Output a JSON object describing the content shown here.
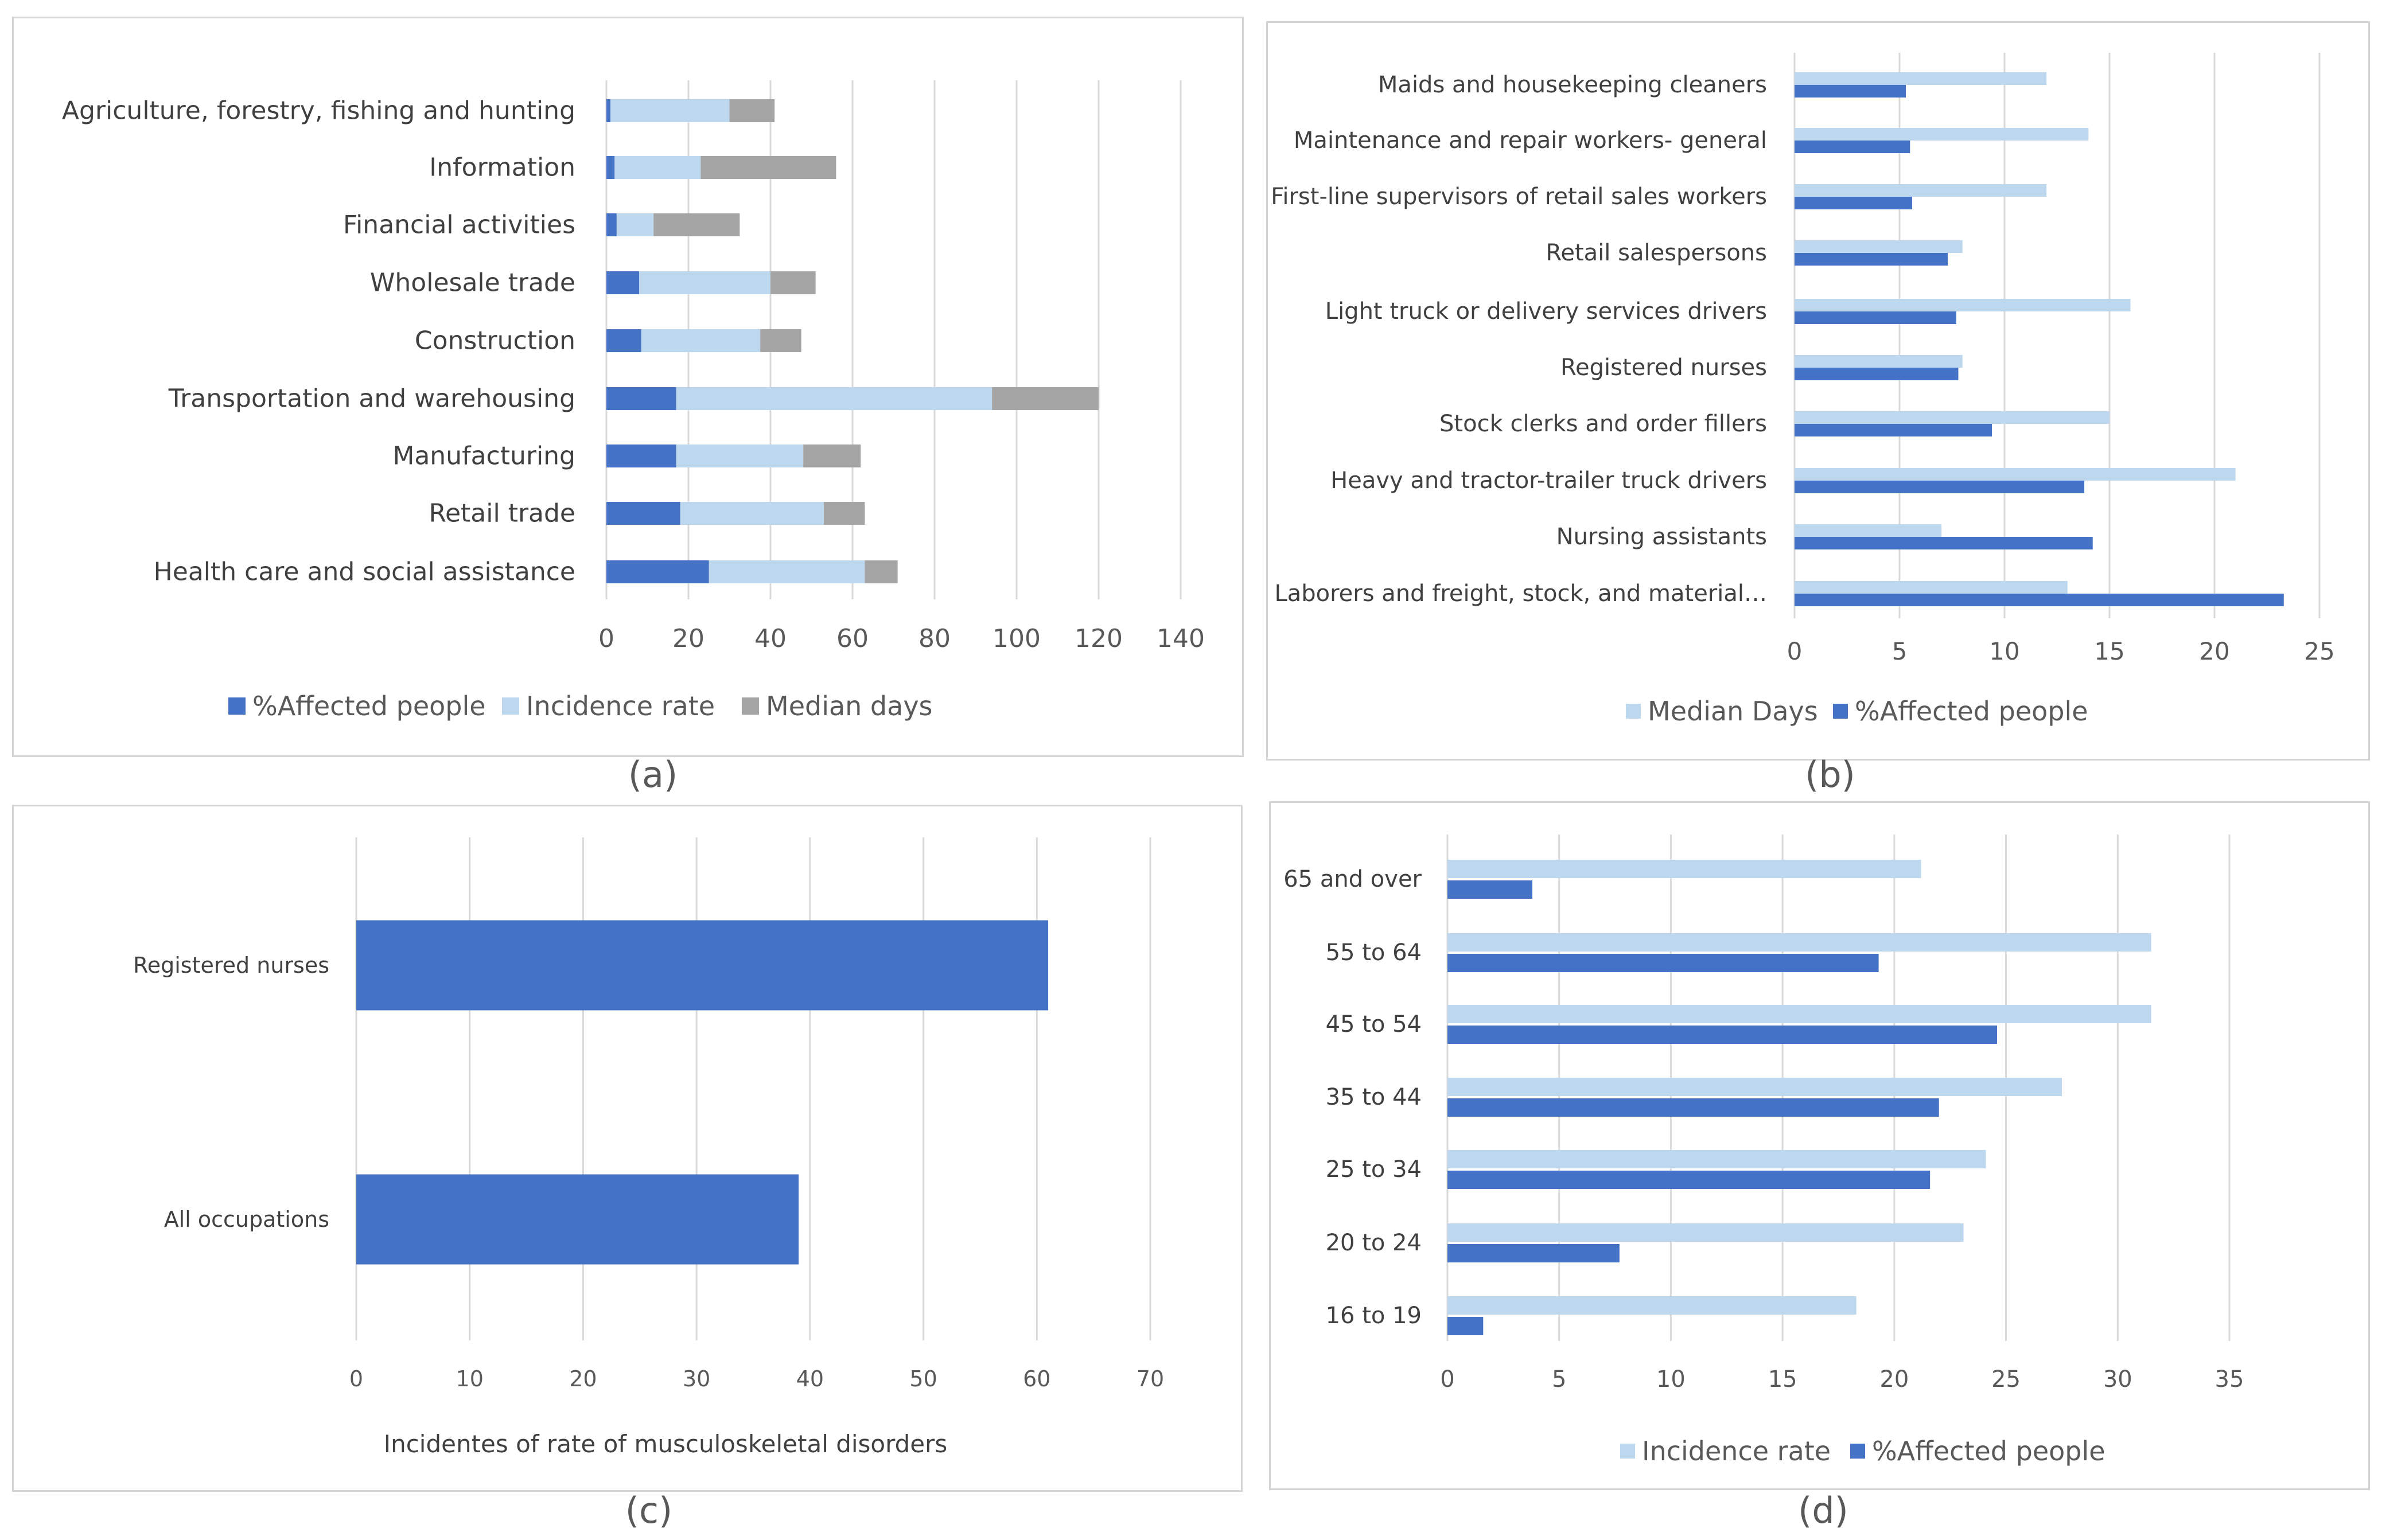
{
  "chart_data": [
    {
      "panel": "(a)",
      "type": "bar",
      "orientation": "horizontal",
      "stacked": true,
      "categories": [
        "Agriculture, forestry, fishing and hunting",
        "Information",
        "Financial activities",
        "Wholesale trade",
        "Construction",
        "Transportation and warehousing",
        "Manufacturing",
        "Retail trade",
        "Health care and social assistance"
      ],
      "series": [
        {
          "name": "%Affected people",
          "color": "#4472c4",
          "values": [
            1,
            2,
            2.5,
            8,
            8.5,
            17,
            17,
            18,
            25
          ]
        },
        {
          "name": "Incidence rate",
          "color": "#bdd7ee",
          "values": [
            29,
            21,
            9,
            32,
            29,
            77,
            31,
            35,
            38
          ]
        },
        {
          "name": "Median days",
          "color": "#a5a5a5",
          "values": [
            11,
            33,
            21,
            11,
            10,
            26,
            14,
            10,
            8
          ]
        }
      ],
      "xlim": [
        0,
        140
      ],
      "xticks": [
        "0",
        "20",
        "40",
        "60",
        "80",
        "100",
        "120",
        "140"
      ],
      "legend_position": "bottom",
      "title": "",
      "xlabel": "",
      "ylabel": ""
    },
    {
      "panel": "(b)",
      "type": "bar",
      "orientation": "horizontal",
      "stacked": false,
      "categories": [
        "Maids and housekeeping cleaners",
        "Maintenance and repair workers- general",
        "First-line supervisors of retail sales workers",
        "Retail salespersons",
        "Light truck or delivery services drivers",
        "Registered nurses",
        "Stock clerks and order fillers",
        "Heavy and tractor-trailer truck drivers",
        "Nursing assistants",
        "Laborers and freight, stock, and material…"
      ],
      "series": [
        {
          "name": "Median Days",
          "color": "#bdd7ee",
          "values": [
            12,
            14,
            12,
            8,
            16,
            8,
            15,
            21,
            7,
            13
          ]
        },
        {
          "name": "%Affected people",
          "color": "#4472c4",
          "values": [
            5.3,
            5.5,
            5.6,
            7.3,
            7.7,
            7.8,
            9.4,
            13.8,
            14.2,
            23.3
          ]
        }
      ],
      "xlim": [
        0,
        25
      ],
      "xticks": [
        "0",
        "5",
        "10",
        "15",
        "20",
        "25"
      ],
      "legend_position": "bottom",
      "title": "",
      "xlabel": "",
      "ylabel": ""
    },
    {
      "panel": "(c)",
      "type": "bar",
      "orientation": "horizontal",
      "stacked": false,
      "categories": [
        "Registered nurses",
        "All occupations"
      ],
      "series": [
        {
          "name": "Incidence rate",
          "color": "#4472c4",
          "values": [
            61,
            39
          ]
        }
      ],
      "xlim": [
        0,
        70
      ],
      "xticks": [
        "0",
        "10",
        "20",
        "30",
        "40",
        "50",
        "60",
        "70"
      ],
      "xlabel": "Incidentes of rate of musculoskeletal disorders",
      "title": "",
      "ylabel": ""
    },
    {
      "panel": "(d)",
      "type": "bar",
      "orientation": "horizontal",
      "stacked": false,
      "categories": [
        "65 and over",
        "55 to 64",
        "45 to 54",
        "35 to 44",
        "25 to 34",
        "20 to 24",
        "16 to 19"
      ],
      "series": [
        {
          "name": "Incidence rate",
          "color": "#bdd7ee",
          "values": [
            21.2,
            31.5,
            31.5,
            27.5,
            24.1,
            23.1,
            18.3
          ]
        },
        {
          "name": "%Affected people",
          "color": "#4472c4",
          "values": [
            3.8,
            19.3,
            24.6,
            22.0,
            21.6,
            7.7,
            1.6
          ]
        }
      ],
      "xlim": [
        0,
        35
      ],
      "xticks": [
        "0",
        "5",
        "10",
        "15",
        "20",
        "25",
        "30",
        "35"
      ],
      "legend_position": "bottom",
      "title": "",
      "xlabel": "",
      "ylabel": ""
    }
  ],
  "captions": [
    "(a)",
    "(b)",
    "(c)",
    "(d)"
  ]
}
